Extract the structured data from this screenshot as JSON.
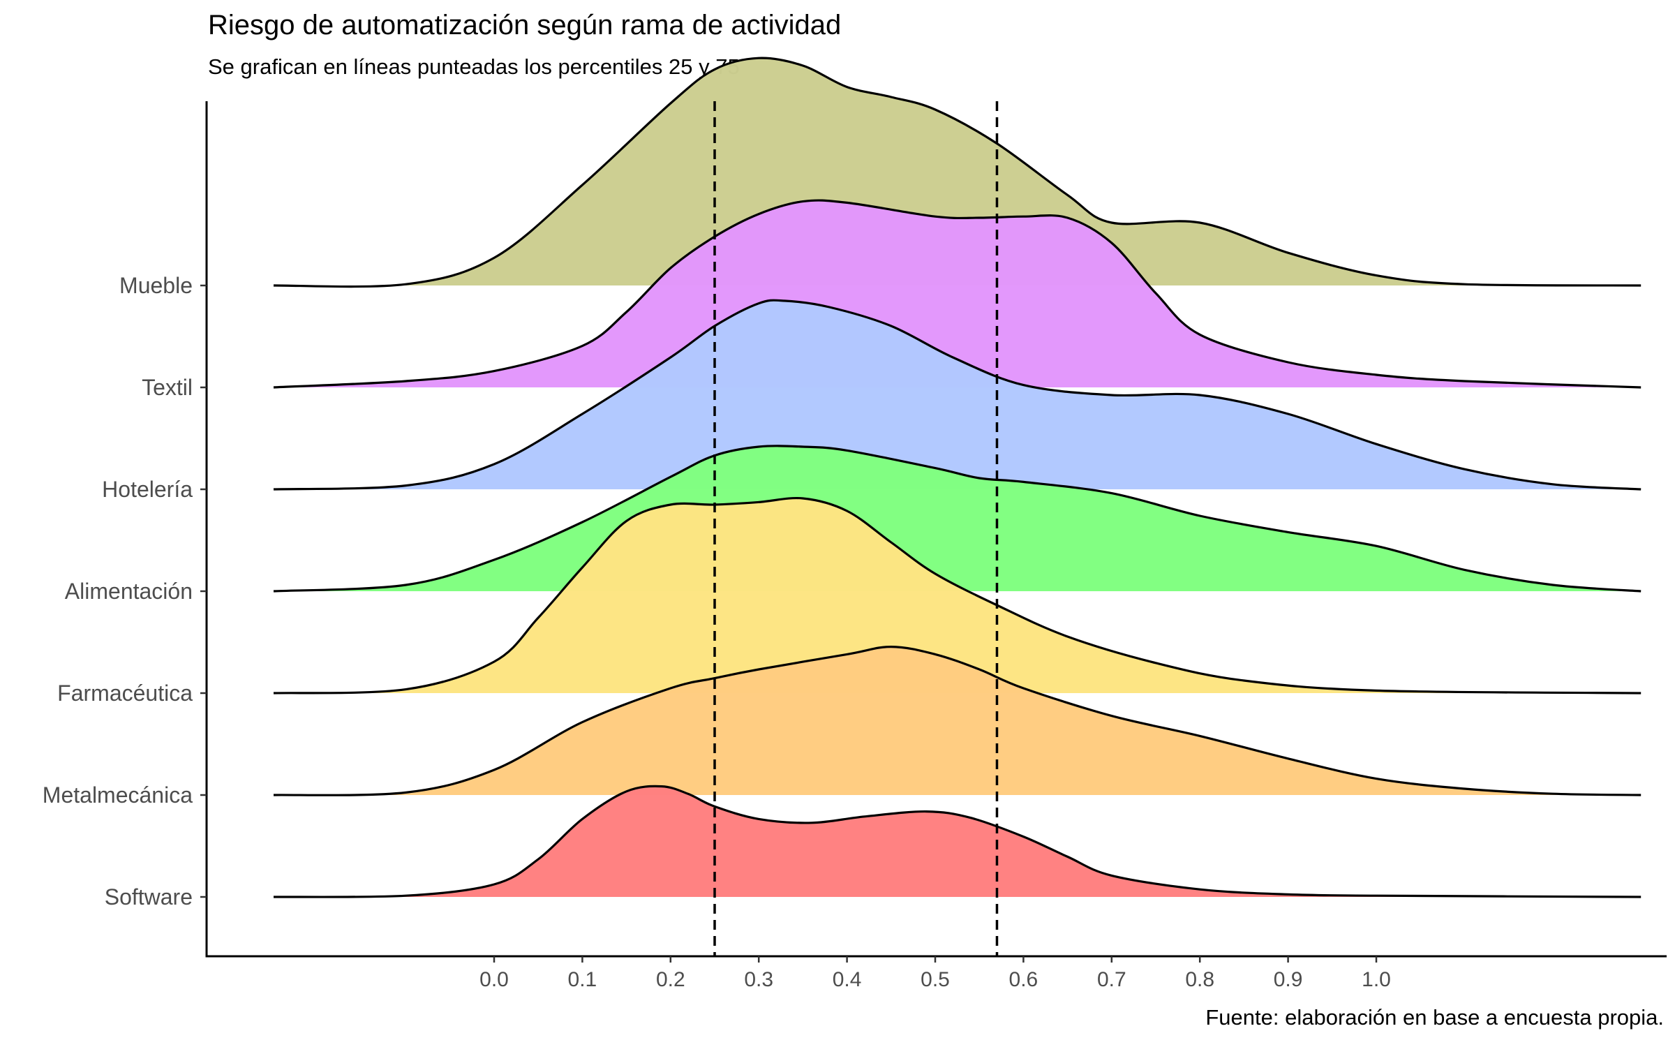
{
  "chart_data": {
    "type": "ridgeline",
    "title": "Riesgo de automatización según rama de actividad",
    "subtitle": "Se grafican en líneas punteadas los percentiles 25 y 75",
    "caption": "Fuente: elaboración en base a encuesta propia.",
    "xlabel": "",
    "ylabel": "",
    "xlim": [
      -0.25,
      1.3
    ],
    "x_ticks": [
      "0.0",
      "0.1",
      "0.2",
      "0.3",
      "0.4",
      "0.5",
      "0.6",
      "0.7",
      "0.8",
      "0.9",
      "1.0"
    ],
    "reference_lines": [
      {
        "x": 0.25,
        "style": "dashed"
      },
      {
        "x": 0.57,
        "style": "dashed"
      }
    ],
    "series": [
      {
        "name": "Software",
        "color": "#ff8080",
        "points": [
          [
            -0.25,
            0
          ],
          [
            -0.1,
            0.01
          ],
          [
            0.0,
            0.1
          ],
          [
            0.05,
            0.3
          ],
          [
            0.1,
            0.62
          ],
          [
            0.15,
            0.84
          ],
          [
            0.19,
            0.88
          ],
          [
            0.22,
            0.82
          ],
          [
            0.25,
            0.72
          ],
          [
            0.3,
            0.62
          ],
          [
            0.36,
            0.59
          ],
          [
            0.42,
            0.64
          ],
          [
            0.49,
            0.68
          ],
          [
            0.54,
            0.63
          ],
          [
            0.6,
            0.48
          ],
          [
            0.65,
            0.32
          ],
          [
            0.7,
            0.17
          ],
          [
            0.8,
            0.06
          ],
          [
            0.9,
            0.02
          ],
          [
            1.0,
            0.01
          ],
          [
            1.3,
            0
          ]
        ]
      },
      {
        "name": "Metalmecánica",
        "color": "#ffcc80",
        "points": [
          [
            -0.25,
            0
          ],
          [
            -0.1,
            0.02
          ],
          [
            0.0,
            0.2
          ],
          [
            0.1,
            0.58
          ],
          [
            0.2,
            0.85
          ],
          [
            0.25,
            0.93
          ],
          [
            0.3,
            1.0
          ],
          [
            0.4,
            1.12
          ],
          [
            0.45,
            1.18
          ],
          [
            0.5,
            1.12
          ],
          [
            0.55,
            1.0
          ],
          [
            0.6,
            0.85
          ],
          [
            0.7,
            0.63
          ],
          [
            0.8,
            0.47
          ],
          [
            0.9,
            0.29
          ],
          [
            1.0,
            0.13
          ],
          [
            1.1,
            0.05
          ],
          [
            1.2,
            0.01
          ],
          [
            1.3,
            0
          ]
        ]
      },
      {
        "name": "Farmacéutica",
        "color": "#fde482",
        "points": [
          [
            -0.25,
            0
          ],
          [
            -0.1,
            0.03
          ],
          [
            0.0,
            0.25
          ],
          [
            0.05,
            0.6
          ],
          [
            0.1,
            1.0
          ],
          [
            0.15,
            1.37
          ],
          [
            0.2,
            1.5
          ],
          [
            0.25,
            1.5
          ],
          [
            0.3,
            1.52
          ],
          [
            0.35,
            1.55
          ],
          [
            0.4,
            1.45
          ],
          [
            0.45,
            1.2
          ],
          [
            0.5,
            0.95
          ],
          [
            0.57,
            0.7
          ],
          [
            0.65,
            0.45
          ],
          [
            0.75,
            0.24
          ],
          [
            0.85,
            0.1
          ],
          [
            1.0,
            0.02
          ],
          [
            1.3,
            0
          ]
        ]
      },
      {
        "name": "Alimentación",
        "color": "#80ff80",
        "points": [
          [
            -0.25,
            0
          ],
          [
            -0.1,
            0.05
          ],
          [
            0.0,
            0.25
          ],
          [
            0.1,
            0.55
          ],
          [
            0.2,
            0.91
          ],
          [
            0.25,
            1.08
          ],
          [
            0.3,
            1.15
          ],
          [
            0.35,
            1.15
          ],
          [
            0.4,
            1.12
          ],
          [
            0.5,
            0.98
          ],
          [
            0.55,
            0.9
          ],
          [
            0.6,
            0.87
          ],
          [
            0.7,
            0.78
          ],
          [
            0.8,
            0.6
          ],
          [
            0.9,
            0.47
          ],
          [
            1.0,
            0.36
          ],
          [
            1.1,
            0.17
          ],
          [
            1.2,
            0.05
          ],
          [
            1.3,
            0
          ]
        ]
      },
      {
        "name": "Hotelería",
        "color": "#b0c8ff",
        "points": [
          [
            -0.25,
            0
          ],
          [
            -0.1,
            0.03
          ],
          [
            0.0,
            0.2
          ],
          [
            0.1,
            0.6
          ],
          [
            0.2,
            1.05
          ],
          [
            0.25,
            1.3
          ],
          [
            0.3,
            1.48
          ],
          [
            0.33,
            1.5
          ],
          [
            0.38,
            1.45
          ],
          [
            0.45,
            1.3
          ],
          [
            0.52,
            1.05
          ],
          [
            0.6,
            0.83
          ],
          [
            0.7,
            0.75
          ],
          [
            0.8,
            0.75
          ],
          [
            0.9,
            0.6
          ],
          [
            1.0,
            0.36
          ],
          [
            1.1,
            0.16
          ],
          [
            1.2,
            0.04
          ],
          [
            1.3,
            0
          ]
        ]
      },
      {
        "name": "Textil",
        "color": "#e296fc",
        "points": [
          [
            -0.25,
            0
          ],
          [
            -0.1,
            0.05
          ],
          [
            0.0,
            0.13
          ],
          [
            0.1,
            0.33
          ],
          [
            0.15,
            0.6
          ],
          [
            0.2,
            0.95
          ],
          [
            0.25,
            1.2
          ],
          [
            0.3,
            1.38
          ],
          [
            0.35,
            1.48
          ],
          [
            0.4,
            1.47
          ],
          [
            0.5,
            1.36
          ],
          [
            0.55,
            1.35
          ],
          [
            0.6,
            1.36
          ],
          [
            0.65,
            1.35
          ],
          [
            0.7,
            1.15
          ],
          [
            0.75,
            0.75
          ],
          [
            0.8,
            0.42
          ],
          [
            0.9,
            0.2
          ],
          [
            1.0,
            0.1
          ],
          [
            1.1,
            0.05
          ],
          [
            1.3,
            0
          ]
        ]
      },
      {
        "name": "Mueble",
        "color": "#ccce90",
        "points": [
          [
            -0.25,
            0
          ],
          [
            -0.1,
            0.01
          ],
          [
            0.0,
            0.22
          ],
          [
            0.1,
            0.8
          ],
          [
            0.2,
            1.45
          ],
          [
            0.25,
            1.72
          ],
          [
            0.3,
            1.81
          ],
          [
            0.35,
            1.75
          ],
          [
            0.4,
            1.58
          ],
          [
            0.45,
            1.5
          ],
          [
            0.5,
            1.4
          ],
          [
            0.57,
            1.13
          ],
          [
            0.65,
            0.72
          ],
          [
            0.7,
            0.5
          ],
          [
            0.8,
            0.5
          ],
          [
            0.9,
            0.26
          ],
          [
            1.0,
            0.08
          ],
          [
            1.1,
            0.01
          ],
          [
            1.3,
            0
          ]
        ]
      }
    ]
  }
}
